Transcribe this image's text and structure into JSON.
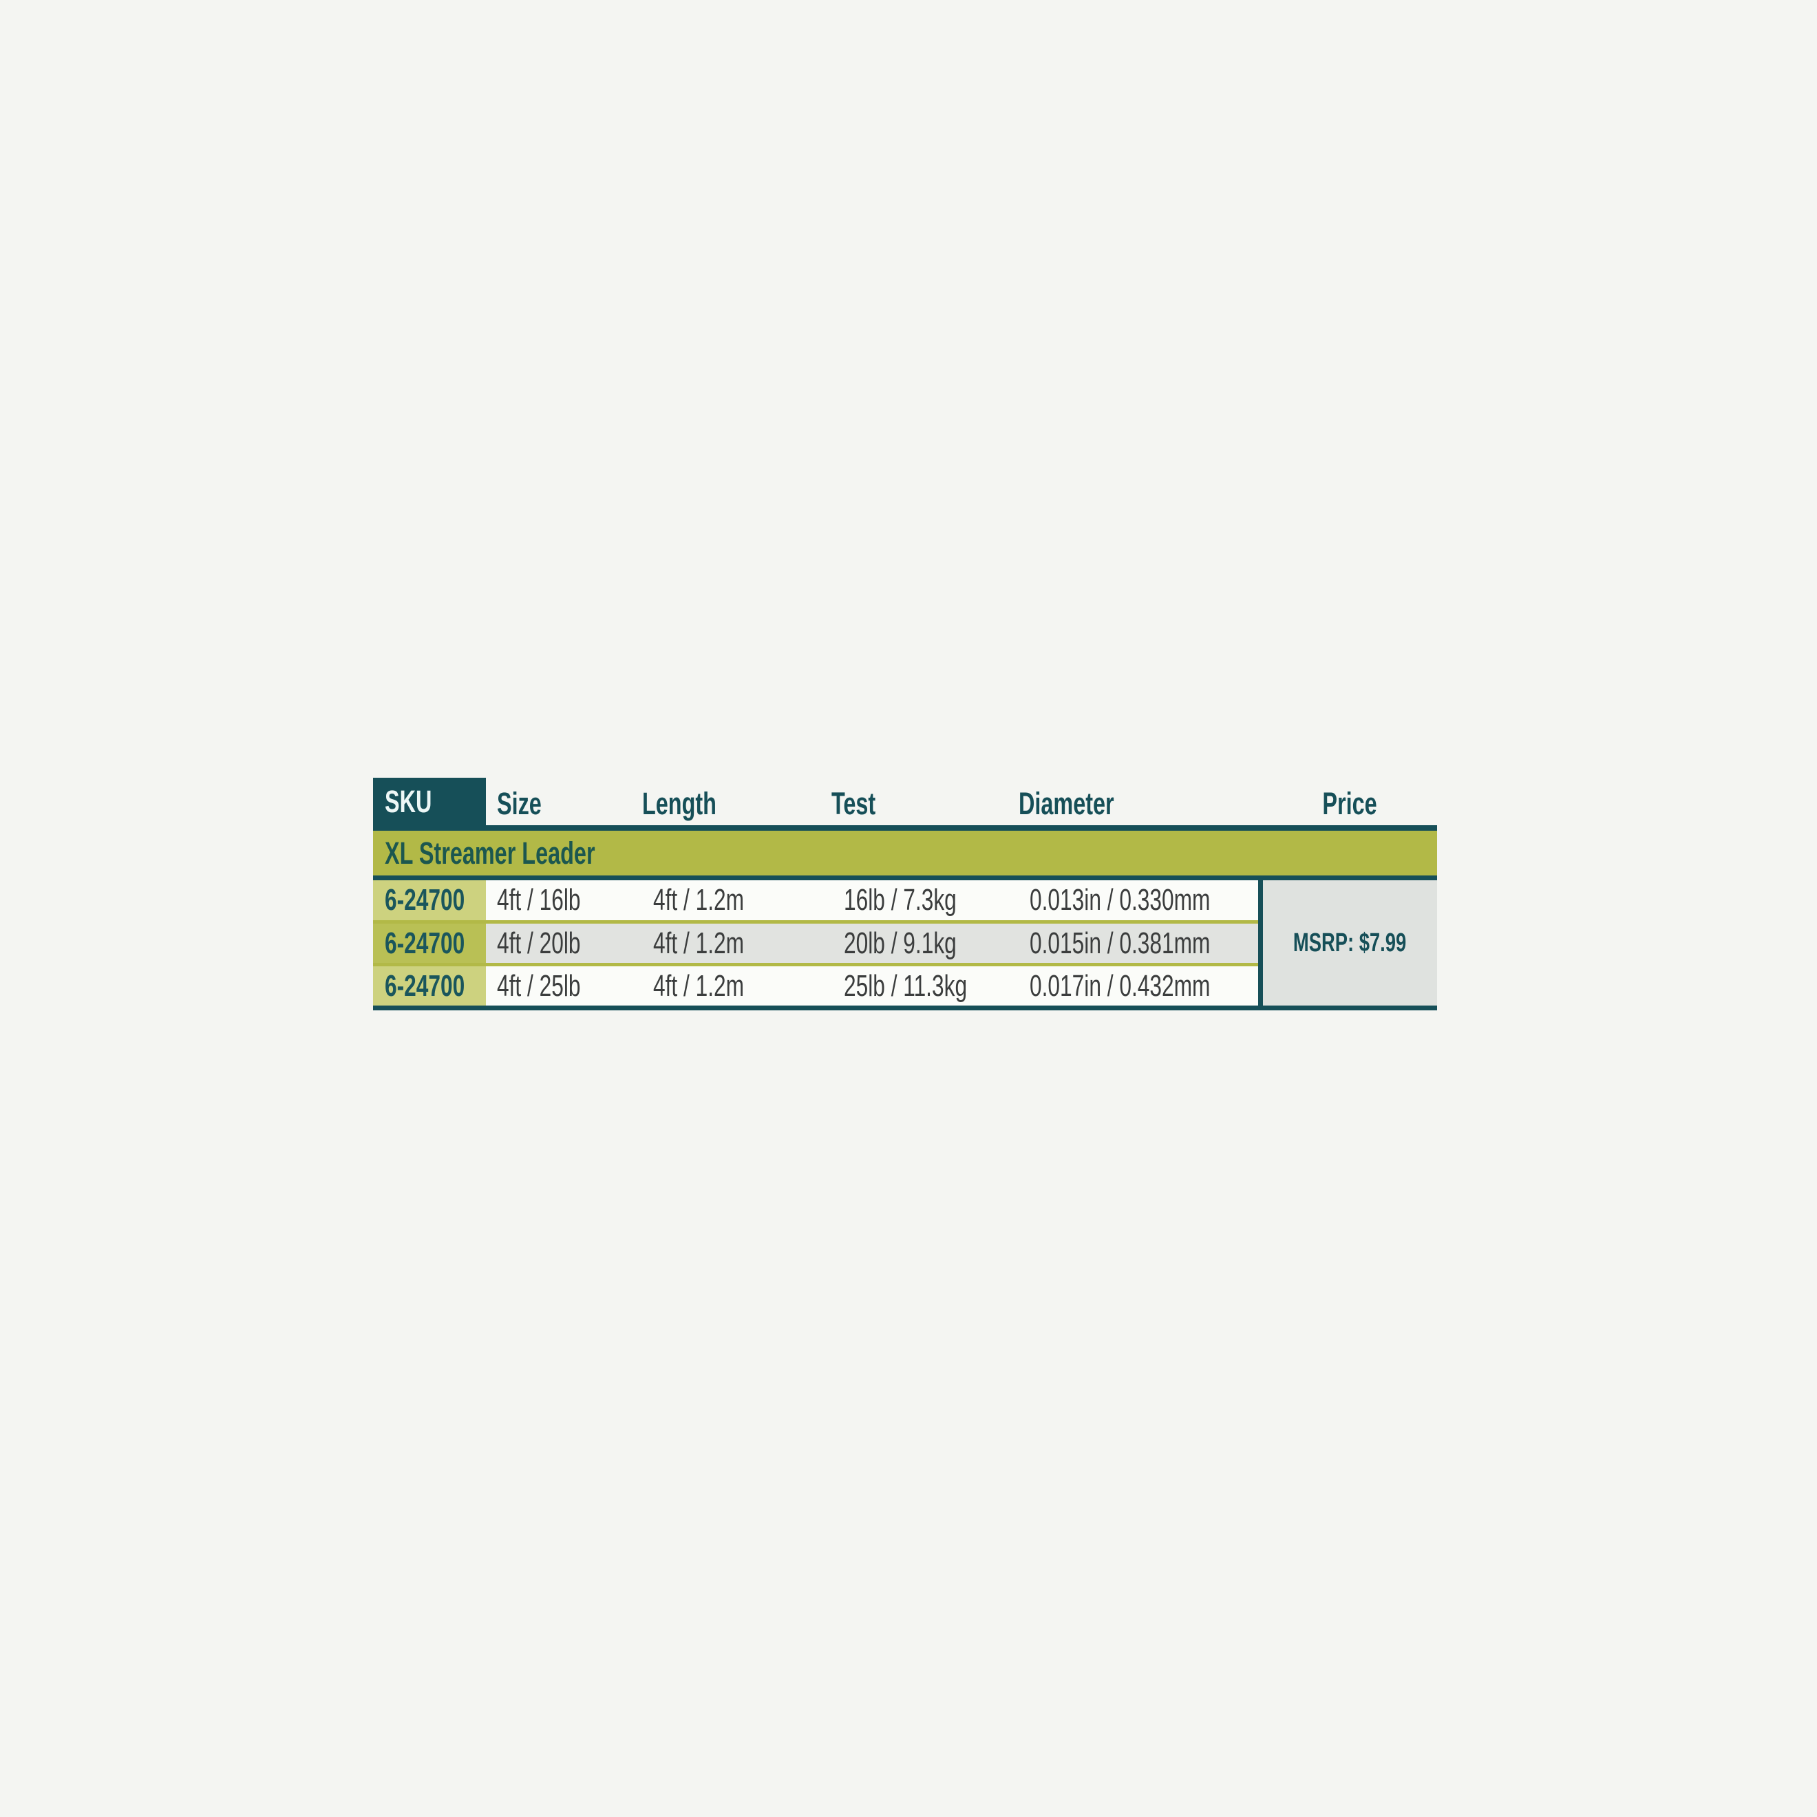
{
  "page": {
    "background_color": "#f4f5f2"
  },
  "table": {
    "columns": [
      "SKU",
      "Size",
      "Length",
      "Test",
      "Diameter",
      "Price"
    ],
    "group_label": "XL Streamer Leader",
    "rows": [
      {
        "sku": "6-24700",
        "size": "4ft / 16lb",
        "length": "4ft / 1.2m",
        "test": "16lb / 7.3kg",
        "diameter": "0.013in / 0.330mm"
      },
      {
        "sku": "6-24700",
        "size": "4ft / 20lb",
        "length": "4ft / 1.2m",
        "test": "20lb / 9.1kg",
        "diameter": "0.015in / 0.381mm"
      },
      {
        "sku": "6-24700",
        "size": "4ft / 25lb",
        "length": "4ft / 1.2m",
        "test": "25lb / 11.3kg",
        "diameter": "0.017in / 0.432mm"
      }
    ],
    "price_note": "MSRP: $7.99",
    "colors": {
      "teal": "#164f58",
      "olive_band": "#b2b947",
      "sku_cell_light": "#cdd27f",
      "sku_cell_dark": "#b9c055",
      "row_white": "#fbfcf9",
      "row_gray": "#e1e3e0",
      "price_bg": "#dfe2df",
      "header_text": "#164f58",
      "data_text": "#3b3d3d"
    }
  }
}
